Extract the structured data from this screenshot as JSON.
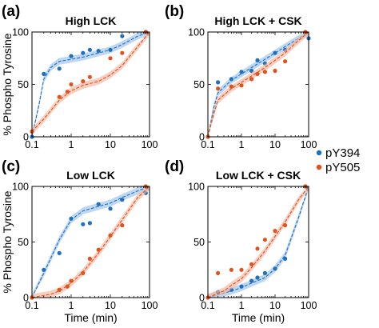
{
  "figure": {
    "ylabel": "% Phospho Tyrosine",
    "xlabel": "Time (min)",
    "legend": [
      {
        "label": "pY394",
        "color": "#1f6fc2"
      },
      {
        "label": "pY505",
        "color": "#e0531f"
      }
    ],
    "band_colors": {
      "pY394": "#9cc3ea",
      "pY505": "#f3b49c"
    }
  },
  "chart_data": [
    {
      "type": "line",
      "panel_label": "(a)",
      "title": "High LCK",
      "xscale": "log",
      "xlim": [
        0.1,
        100
      ],
      "ylim": [
        0,
        100
      ],
      "xticks": [
        "0.1",
        "1",
        "10",
        "100"
      ],
      "yticks": [
        "0",
        "50",
        "100"
      ],
      "grid": false,
      "series": [
        {
          "name": "pY394",
          "color": "#1f6fc2",
          "points": [
            [
              0.1,
              0
            ],
            [
              0.2,
              60
            ],
            [
              0.5,
              65
            ],
            [
              1,
              77
            ],
            [
              2,
              80
            ],
            [
              3,
              83
            ],
            [
              5,
              82
            ],
            [
              10,
              83
            ],
            [
              20,
              96
            ],
            [
              80,
              100
            ]
          ],
          "fit": [
            [
              0.1,
              0
            ],
            [
              0.15,
              30
            ],
            [
              0.2,
              55
            ],
            [
              0.3,
              66
            ],
            [
              0.5,
              72
            ],
            [
              1,
              74
            ],
            [
              2,
              76
            ],
            [
              5,
              80
            ],
            [
              10,
              83
            ],
            [
              20,
              88
            ],
            [
              50,
              96
            ],
            [
              100,
              100
            ]
          ]
        },
        {
          "name": "pY505",
          "color": "#e0531f",
          "points": [
            [
              0.1,
              5
            ],
            [
              0.5,
              38
            ],
            [
              0.8,
              43
            ],
            [
              1,
              50
            ],
            [
              2,
              53
            ],
            [
              3,
              57
            ],
            [
              10,
              75
            ],
            [
              20,
              80
            ],
            [
              80,
              100
            ]
          ],
          "fit": [
            [
              0.1,
              5
            ],
            [
              0.2,
              17
            ],
            [
              0.5,
              35
            ],
            [
              1,
              44
            ],
            [
              2,
              49
            ],
            [
              5,
              53
            ],
            [
              10,
              59
            ],
            [
              20,
              68
            ],
            [
              50,
              86
            ],
            [
              100,
              100
            ]
          ]
        }
      ]
    },
    {
      "type": "line",
      "panel_label": "(b)",
      "title": "High LCK + CSK",
      "xscale": "log",
      "xlim": [
        0.1,
        100
      ],
      "ylim": [
        0,
        100
      ],
      "xticks": [
        "0.1",
        "1",
        "10",
        "100"
      ],
      "yticks": [
        "0",
        "50",
        "100"
      ],
      "grid": false,
      "series": [
        {
          "name": "pY394",
          "color": "#1f6fc2",
          "points": [
            [
              0.1,
              0
            ],
            [
              0.2,
              52
            ],
            [
              0.5,
              55
            ],
            [
              1,
              62
            ],
            [
              2,
              63
            ],
            [
              3,
              73
            ],
            [
              5,
              70
            ],
            [
              10,
              80
            ],
            [
              20,
              83
            ],
            [
              100,
              94
            ]
          ],
          "fit": [
            [
              0.1,
              0
            ],
            [
              0.15,
              28
            ],
            [
              0.2,
              42
            ],
            [
              0.5,
              54
            ],
            [
              1,
              60
            ],
            [
              2,
              66
            ],
            [
              5,
              74
            ],
            [
              10,
              80
            ],
            [
              20,
              86
            ],
            [
              50,
              94
            ],
            [
              100,
              100
            ]
          ]
        },
        {
          "name": "pY505",
          "color": "#e0531f",
          "points": [
            [
              0.1,
              0
            ],
            [
              0.2,
              46
            ],
            [
              0.5,
              48
            ],
            [
              1,
              49
            ],
            [
              2,
              55
            ],
            [
              3,
              60
            ],
            [
              5,
              62
            ],
            [
              10,
              63
            ],
            [
              20,
              72
            ],
            [
              80,
              100
            ]
          ],
          "fit": [
            [
              0.1,
              0
            ],
            [
              0.15,
              22
            ],
            [
              0.2,
              35
            ],
            [
              0.5,
              46
            ],
            [
              1,
              52
            ],
            [
              2,
              58
            ],
            [
              5,
              66
            ],
            [
              10,
              73
            ],
            [
              20,
              80
            ],
            [
              50,
              92
            ],
            [
              100,
              100
            ]
          ]
        }
      ]
    },
    {
      "type": "line",
      "panel_label": "(c)",
      "title": "Low LCK",
      "xscale": "log",
      "xlim": [
        0.1,
        100
      ],
      "ylim": [
        0,
        100
      ],
      "xticks": [
        "0.1",
        "1",
        "10",
        "100"
      ],
      "yticks": [
        "0",
        "50",
        "100"
      ],
      "grid": false,
      "series": [
        {
          "name": "pY394",
          "color": "#1f6fc2",
          "points": [
            [
              0.1,
              0
            ],
            [
              0.2,
              25
            ],
            [
              0.5,
              40
            ],
            [
              1,
              71
            ],
            [
              2,
              66
            ],
            [
              3,
              67
            ],
            [
              5,
              84
            ],
            [
              10,
              80
            ],
            [
              20,
              88
            ],
            [
              80,
              94
            ]
          ],
          "fit": [
            [
              0.1,
              0
            ],
            [
              0.2,
              22
            ],
            [
              0.5,
              52
            ],
            [
              1,
              70
            ],
            [
              2,
              78
            ],
            [
              5,
              82
            ],
            [
              10,
              85
            ],
            [
              20,
              90
            ],
            [
              50,
              96
            ],
            [
              100,
              100
            ]
          ]
        },
        {
          "name": "pY505",
          "color": "#e0531f",
          "points": [
            [
              0.1,
              0
            ],
            [
              0.5,
              7
            ],
            [
              0.8,
              10
            ],
            [
              1,
              15
            ],
            [
              2,
              22
            ],
            [
              3,
              35
            ],
            [
              5,
              43
            ],
            [
              10,
              56
            ],
            [
              20,
              65
            ],
            [
              80,
              100
            ]
          ],
          "fit": [
            [
              0.1,
              0
            ],
            [
              0.3,
              3
            ],
            [
              0.5,
              6
            ],
            [
              1,
              13
            ],
            [
              2,
              23
            ],
            [
              5,
              40
            ],
            [
              10,
              55
            ],
            [
              20,
              70
            ],
            [
              50,
              90
            ],
            [
              100,
              100
            ]
          ]
        }
      ]
    },
    {
      "type": "line",
      "panel_label": "(d)",
      "title": "Low LCK + CSK",
      "xscale": "log",
      "xlim": [
        0.1,
        100
      ],
      "ylim": [
        0,
        100
      ],
      "xticks": [
        "0.1",
        "1",
        "10",
        "100"
      ],
      "yticks": [
        "0",
        "50",
        "100"
      ],
      "grid": false,
      "series": [
        {
          "name": "pY394",
          "color": "#1f6fc2",
          "points": [
            [
              0.1,
              0
            ],
            [
              0.2,
              5
            ],
            [
              0.5,
              7
            ],
            [
              1,
              10
            ],
            [
              2,
              15
            ],
            [
              3,
              18
            ],
            [
              5,
              22
            ],
            [
              10,
              26
            ],
            [
              20,
              35
            ],
            [
              80,
              100
            ]
          ],
          "fit": [
            [
              0.1,
              0
            ],
            [
              0.3,
              4
            ],
            [
              0.5,
              6
            ],
            [
              1,
              9
            ],
            [
              2,
              13
            ],
            [
              5,
              18
            ],
            [
              10,
              26
            ],
            [
              20,
              38
            ],
            [
              50,
              72
            ],
            [
              100,
              100
            ]
          ]
        },
        {
          "name": "pY505",
          "color": "#e0531f",
          "points": [
            [
              0.1,
              0
            ],
            [
              0.2,
              22
            ],
            [
              0.5,
              25
            ],
            [
              1,
              25
            ],
            [
              2,
              30
            ],
            [
              3,
              44
            ],
            [
              5,
              52
            ],
            [
              10,
              60
            ],
            [
              20,
              65
            ],
            [
              80,
              100
            ]
          ],
          "fit": [
            [
              0.1,
              0
            ],
            [
              0.3,
              6
            ],
            [
              0.5,
              11
            ],
            [
              1,
              17
            ],
            [
              2,
              27
            ],
            [
              5,
              42
            ],
            [
              10,
              55
            ],
            [
              20,
              68
            ],
            [
              50,
              88
            ],
            [
              100,
              100
            ]
          ]
        }
      ]
    }
  ]
}
